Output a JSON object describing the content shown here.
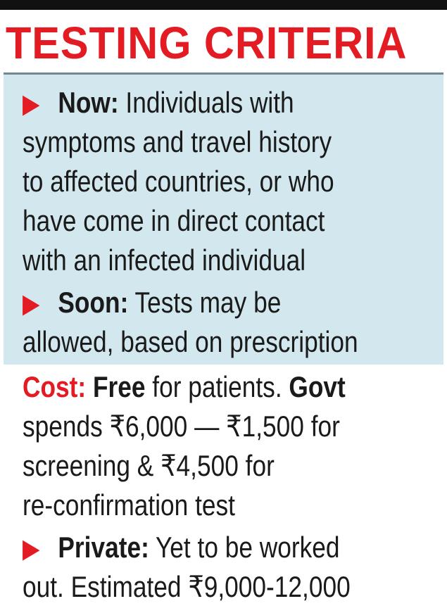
{
  "title": "TESTING CRITERIA",
  "colors": {
    "accent": "#e31b23",
    "panel": "#d3e8ee",
    "text": "#1a1a1a",
    "bar": "#111111"
  },
  "arrow_icon": "▶",
  "now": {
    "label": "Now:",
    "lines": [
      "Individuals with",
      "symptoms and travel history",
      "to affected countries, or who",
      "have come in direct contact",
      "with an infected individual"
    ]
  },
  "soon": {
    "label": "Soon:",
    "lines": [
      "Tests may be",
      "allowed, based on prescription"
    ]
  },
  "cost": {
    "label": "Cost:",
    "free": "Free",
    "rest1": " for patients. ",
    "govt": "Govt",
    "lines": [
      "spends ₹6,000 — ₹1,500 for",
      "screening & ₹4,500 for",
      "re-confirmation test"
    ]
  },
  "private": {
    "label": "Private:",
    "lines": [
      "Yet to be worked",
      "out. Estimated ₹9,000-12,000"
    ]
  }
}
